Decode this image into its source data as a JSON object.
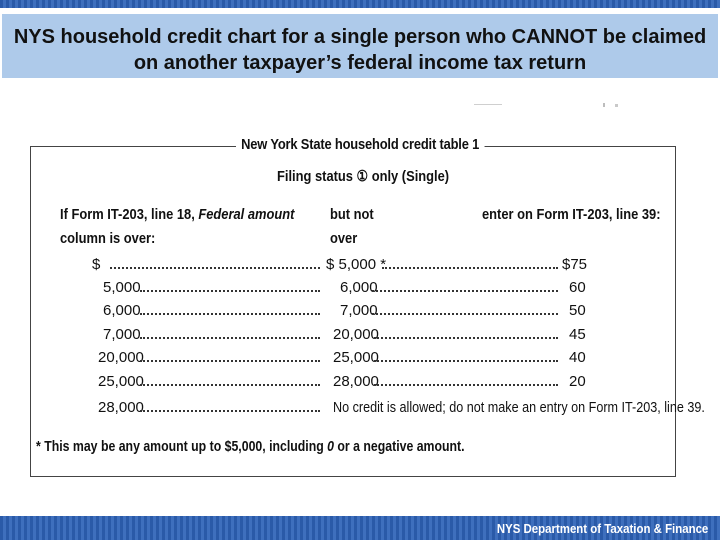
{
  "slide": {
    "title": "NYS household credit chart for a single person who CANNOT be claimed on another taxpayer’s federal income tax return",
    "footer": "NYS Department of Taxation & Finance"
  },
  "table": {
    "title": "New York State household credit table 1",
    "subtitle": "Filing status ① only (Single)",
    "header": {
      "col1_line1_prefix": "If Form IT-203, line 18, ",
      "col1_line1_italic": "Federal amount",
      "col1_line2": "column is over:",
      "col2_line1": "but not",
      "col2_line2": "over",
      "col3_line1": "enter on Form IT-203, line 39:"
    },
    "rows": [
      {
        "over": "$",
        "not_over": "$  5,000 *",
        "credit": "$75"
      },
      {
        "over": "5,000",
        "not_over": "6,000",
        "credit": "60"
      },
      {
        "over": "6,000",
        "not_over": "7,000",
        "credit": "50"
      },
      {
        "over": "7,000",
        "not_over": "20,000",
        "credit": "45"
      },
      {
        "over": "20,000",
        "not_over": "25,000",
        "credit": "40"
      },
      {
        "over": "25,000",
        "not_over": "28,000",
        "credit": "20"
      },
      {
        "over": "28,000",
        "not_over": "No credit is allowed; do not make an entry on Form IT-203, line 39.",
        "credit": ""
      }
    ],
    "footnote_prefix": "* This may be any amount up to $5,000, including ",
    "footnote_italic": "0",
    "footnote_suffix": " or a negative amount."
  }
}
